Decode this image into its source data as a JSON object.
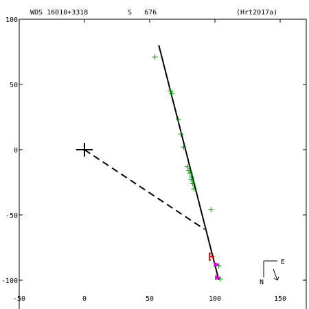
{
  "header": {
    "object": "WDS 16010+3318",
    "discoverer": "S   676",
    "reference": "(Hrt2017a)"
  },
  "compass": {
    "east_label": "E",
    "north_label": "N"
  },
  "colors": {
    "background": "#ffffff",
    "axes": "#000000",
    "orbit": "#000000",
    "measures": "#009900",
    "recent": "#dd0000",
    "latest": "#cc00cc"
  },
  "chart_data": {
    "type": "scatter",
    "title": "",
    "xlabel": "",
    "ylabel": "",
    "xlim": [
      -50,
      170
    ],
    "ylim": [
      -120,
      100
    ],
    "x_ticks": [
      -50,
      0,
      50,
      100,
      150
    ],
    "y_ticks": [
      100,
      50,
      0,
      -50,
      -100
    ],
    "y_tick_labels": [
      "100",
      "50",
      "0",
      "-50",
      "-100"
    ],
    "primary": {
      "x": 0,
      "y": 0
    },
    "orbit_line": [
      [
        57,
        80
      ],
      [
        103,
        -100
      ]
    ],
    "periastron_connector": [
      [
        0,
        0
      ],
      [
        92,
        -61
      ]
    ],
    "series": [
      {
        "marker": "plus",
        "color": "#009900",
        "points": [
          [
            54,
            71
          ],
          [
            66,
            45
          ],
          [
            67,
            43
          ],
          [
            72,
            23
          ],
          [
            74,
            12
          ],
          [
            76,
            2
          ],
          [
            79,
            -13
          ],
          [
            80,
            -16
          ],
          [
            81,
            -18
          ],
          [
            82,
            -21
          ],
          [
            82,
            -23
          ],
          [
            83,
            -26
          ],
          [
            84,
            -30
          ],
          [
            97,
            -46
          ],
          [
            103,
            -89
          ],
          [
            104,
            -99
          ]
        ]
      },
      {
        "marker": "bracket",
        "color": "#dd0000",
        "points": [
          [
            98,
            -82
          ]
        ]
      },
      {
        "marker": "triangle",
        "color": "#cc00cc",
        "points": [
          [
            101,
            -88
          ],
          [
            102,
            -98
          ]
        ]
      }
    ]
  }
}
